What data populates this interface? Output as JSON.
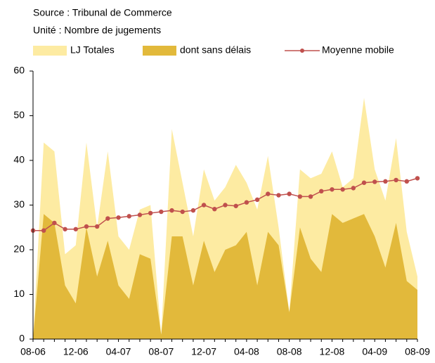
{
  "chart_data": {
    "type": "area",
    "subtitle": "Source : Tribunal de Commerce",
    "unit_label": "Unité : Nombre de jugements",
    "categories": [
      "08-06",
      null,
      null,
      null,
      "12-06",
      null,
      null,
      null,
      "04-07",
      null,
      null,
      null,
      "08-07",
      null,
      null,
      null,
      "12-07",
      null,
      null,
      null,
      "04-08",
      null,
      null,
      null,
      "08-08",
      null,
      null,
      null,
      "12-08",
      null,
      null,
      null,
      "04-09",
      null,
      null,
      null,
      "08-09"
    ],
    "series": [
      {
        "name": "LJ Totales",
        "color": "#fdeba2",
        "values": [
          0,
          44,
          42,
          19,
          21,
          44,
          25,
          42,
          23,
          20,
          29,
          30,
          1,
          47,
          35,
          23,
          38,
          31,
          34,
          39,
          35,
          29,
          41,
          25,
          6,
          38,
          36,
          37,
          42,
          34,
          36,
          54,
          38,
          31,
          45,
          24,
          14
        ]
      },
      {
        "name": "dont sans délais",
        "color": "#e2b93b",
        "values": [
          0,
          28,
          26,
          12,
          8,
          25,
          14,
          22,
          12,
          9,
          19,
          18,
          1,
          23,
          23,
          12,
          22,
          15,
          20,
          21,
          24,
          12,
          24,
          21,
          6,
          25,
          18,
          15,
          28,
          26,
          27,
          28,
          23,
          16,
          26,
          13,
          11
        ]
      },
      {
        "name": "Moyenne mobile",
        "color": "#c0504d",
        "type": "line",
        "marker": true,
        "values": [
          24.3,
          24.3,
          26,
          24.6,
          24.6,
          25.2,
          25.2,
          27,
          27.2,
          27.5,
          27.8,
          28.2,
          28.5,
          28.8,
          28.5,
          28.8,
          30,
          29.1,
          30,
          29.8,
          30.6,
          31.2,
          32.5,
          32.2,
          32.5,
          31.9,
          31.9,
          33.1,
          33.5,
          33.5,
          33.8,
          35,
          35.2,
          35.3,
          35.6,
          35.3,
          36
        ]
      }
    ],
    "ylim": [
      0,
      60
    ],
    "yticks": [
      0,
      10,
      20,
      30,
      40,
      50,
      60
    ],
    "grid": false
  }
}
